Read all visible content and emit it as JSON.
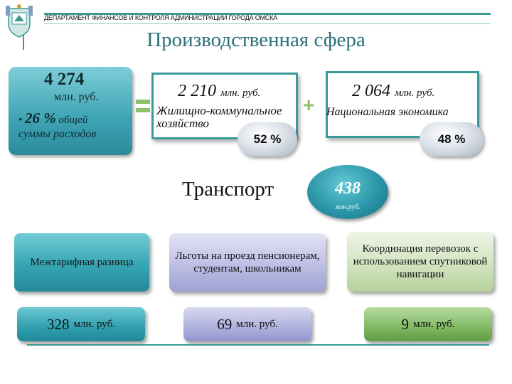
{
  "header": {
    "organization": "ДЕПАРТАМЕНТ ФИНАНСОВ И КОНТРОЛЯ АДМИНИСТРАЦИИ ГОРОДА ОМСКА",
    "title": "Производственная сфера"
  },
  "total": {
    "amount": "4 274",
    "unit": "млн. руб.",
    "bullet": "•",
    "percent": "26 %",
    "percent_suffix": "общей",
    "sum_label": "суммы расходов"
  },
  "housing": {
    "amount": "2 210",
    "unit": "млн. руб.",
    "label": "Жилищно-коммунальное хозяйство",
    "share": "52 %"
  },
  "economy": {
    "amount": "2 064",
    "unit": "млн. руб.",
    "label": "Национальная экономика",
    "share": "48 %"
  },
  "transport": {
    "title": "Транспорт",
    "amount": "438",
    "unit": "млн.руб."
  },
  "items": [
    {
      "label": "Межтарифная разница",
      "amount": "328",
      "unit": "млн. руб."
    },
    {
      "label": "Льготы на проезд пенсионерам, студентам, школьникам",
      "amount": "69",
      "unit": "млн. руб."
    },
    {
      "label": "Координация перевозок с использованием спутниковой навигации",
      "amount": "9",
      "unit": "млн. руб."
    }
  ],
  "colors": {
    "accent": "#3a9a97",
    "title": "#2b6f78",
    "operator_green": "#8fc06a"
  }
}
